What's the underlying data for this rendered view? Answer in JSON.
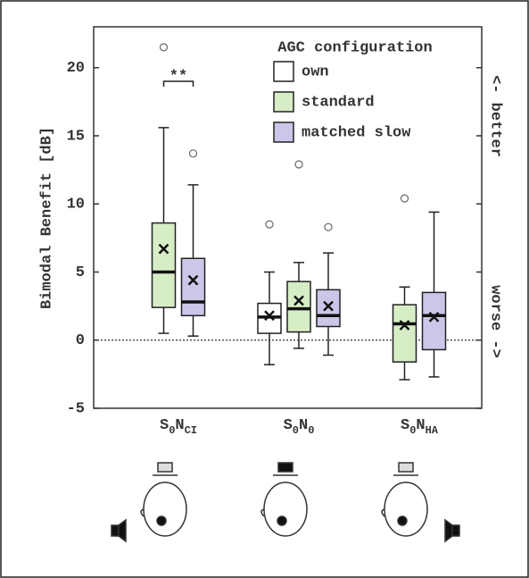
{
  "chart_data": {
    "type": "box",
    "y_label": "Bimodal Benefit [dB]",
    "right_labels": [
      "<- better",
      "worse ->"
    ],
    "legend_title": "AGC configuration",
    "legend_position": "upper right",
    "categories": [
      [
        "S",
        "0",
        "N",
        "CI"
      ],
      [
        "S",
        "0",
        "N",
        "0"
      ],
      [
        "S",
        "0",
        "N",
        "HA"
      ]
    ],
    "ylim": [
      -5,
      23
    ],
    "yticks": [
      -5,
      0,
      5,
      10,
      15,
      20
    ],
    "hline": 0,
    "annotations": [
      {
        "text": "**",
        "category": 0,
        "y": 19
      }
    ],
    "series": [
      {
        "name": "own",
        "color": "#ffffff",
        "boxes": [
          null,
          {
            "low": -1.8,
            "q1": 0.5,
            "median": 1.7,
            "q3": 2.7,
            "high": 5.0,
            "mean": 1.8,
            "outliers": [
              8.5
            ]
          },
          null
        ]
      },
      {
        "name": "standard",
        "color": "#d6edc6",
        "boxes": [
          {
            "low": 0.5,
            "q1": 2.4,
            "median": 5.0,
            "q3": 8.6,
            "high": 15.6,
            "mean": 6.7,
            "outliers": [
              21.5
            ]
          },
          {
            "low": -0.6,
            "q1": 0.6,
            "median": 2.3,
            "q3": 4.3,
            "high": 5.7,
            "mean": 2.9,
            "outliers": [
              12.9
            ]
          },
          {
            "low": -2.9,
            "q1": -1.6,
            "median": 1.2,
            "q3": 2.6,
            "high": 3.9,
            "mean": 1.1,
            "outliers": [
              10.4
            ]
          }
        ]
      },
      {
        "name": "matched slow",
        "color": "#cbc7e8",
        "boxes": [
          {
            "low": 0.3,
            "q1": 1.8,
            "median": 2.8,
            "q3": 6.0,
            "high": 11.4,
            "mean": 4.4,
            "outliers": [
              13.7
            ]
          },
          {
            "low": -1.1,
            "q1": 1.0,
            "median": 1.8,
            "q3": 3.7,
            "high": 6.4,
            "mean": 2.5,
            "outliers": [
              8.3
            ]
          },
          {
            "low": -2.7,
            "q1": -0.7,
            "median": 1.8,
            "q3": 3.5,
            "high": 9.4,
            "mean": 1.7,
            "outliers": []
          }
        ]
      }
    ]
  }
}
